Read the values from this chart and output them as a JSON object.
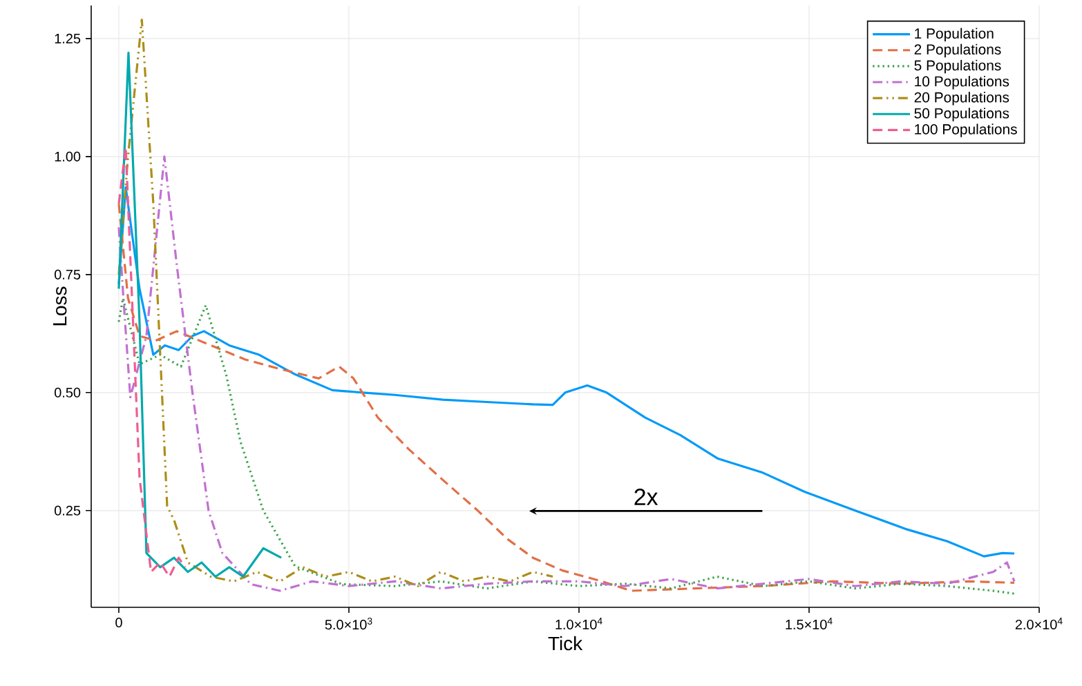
{
  "chart_data": {
    "type": "line",
    "xlabel": "Tick",
    "ylabel": "Loss",
    "xlim": [
      -600,
      20000
    ],
    "ylim": [
      0.045,
      1.32
    ],
    "xticks": [
      0,
      {
        "value": 5000,
        "label": "5.0×10$^{3}$"
      },
      {
        "value": 10000,
        "label": "1.0×10$^{4}$"
      },
      {
        "value": 15000,
        "label": "1.5×10$^{4}$"
      },
      {
        "value": 20000,
        "label": "2.0×10$^{4}$"
      }
    ],
    "yticks": [
      {
        "value": 0.25,
        "label": "0.25"
      },
      {
        "value": 0.5,
        "label": "0.50"
      },
      {
        "value": 0.75,
        "label": "0.75"
      },
      {
        "value": 1.0,
        "label": "1.00"
      },
      {
        "value": 1.25,
        "label": "1.25"
      }
    ],
    "grid": true,
    "legend": "top right",
    "annotations": [
      "2x"
    ],
    "series": [
      {
        "name": "1 Population",
        "color": "#009af9",
        "line_style": "solid",
        "x": [
          0,
          150,
          450,
          750,
          1000,
          1300,
          1600,
          1850,
          2400,
          3050,
          3800,
          4640,
          5300,
          6000,
          7040,
          8000,
          9000,
          9430,
          9700,
          10180,
          10600,
          11440,
          12200,
          13020,
          14000,
          14900,
          16000,
          17130,
          18000,
          18800,
          19200,
          19460
        ],
        "values": [
          0.73,
          0.935,
          0.72,
          0.58,
          0.6,
          0.59,
          0.62,
          0.63,
          0.6,
          0.58,
          0.54,
          0.505,
          0.5,
          0.495,
          0.485,
          0.48,
          0.475,
          0.474,
          0.5,
          0.515,
          0.5,
          0.447,
          0.41,
          0.36,
          0.33,
          0.29,
          0.25,
          0.21,
          0.185,
          0.153,
          0.16,
          0.159
        ]
      },
      {
        "name": "2 Populations",
        "color": "#e26f46",
        "line_style": "dashed",
        "x": [
          0,
          200,
          450,
          800,
          1260,
          2000,
          2750,
          3500,
          4340,
          4790,
          5100,
          5630,
          6300,
          7040,
          7800,
          8440,
          9000,
          9640,
          10500,
          11140,
          12500,
          14000,
          15500,
          17000,
          18500,
          19460
        ],
        "values": [
          0.9,
          0.7,
          0.62,
          0.61,
          0.63,
          0.6,
          0.57,
          0.55,
          0.53,
          0.555,
          0.53,
          0.447,
          0.38,
          0.315,
          0.25,
          0.19,
          0.15,
          0.123,
          0.1,
          0.08,
          0.085,
          0.09,
          0.1,
          0.095,
          0.1,
          0.097
        ]
      },
      {
        "name": "5 Populations",
        "color": "#3ea44e",
        "line_style": "dotted",
        "x": [
          0,
          90,
          450,
          900,
          1350,
          1890,
          2340,
          2640,
          3140,
          3830,
          4850,
          6000,
          7000,
          8000,
          9000,
          10000,
          11000,
          12000,
          13000,
          14000,
          15000,
          16000,
          17000,
          18000,
          19000,
          19460
        ],
        "values": [
          0.65,
          0.7,
          0.56,
          0.58,
          0.555,
          0.685,
          0.535,
          0.397,
          0.25,
          0.132,
          0.094,
          0.09,
          0.1,
          0.085,
          0.1,
          0.09,
          0.095,
          0.085,
          0.11,
          0.09,
          0.1,
          0.085,
          0.095,
          0.09,
          0.08,
          0.074
        ]
      },
      {
        "name": "10 Populations",
        "color": "#c270d2",
        "line_style": "dashdot",
        "x": [
          0,
          100,
          250,
          600,
          990,
          1260,
          1600,
          1950,
          2250,
          2870,
          3500,
          4200,
          5000,
          6000,
          7000,
          8000,
          9000,
          10000,
          11000,
          12000,
          13000,
          14000,
          15000,
          16000,
          17000,
          18000,
          19000,
          19300,
          19460
        ],
        "values": [
          0.85,
          0.7,
          0.49,
          0.62,
          1.0,
          0.77,
          0.5,
          0.25,
          0.16,
          0.094,
          0.08,
          0.1,
          0.09,
          0.1,
          0.085,
          0.095,
          0.1,
          0.1,
          0.09,
          0.105,
          0.085,
          0.095,
          0.105,
          0.09,
          0.1,
          0.095,
          0.12,
          0.14,
          0.1
        ]
      },
      {
        "name": "20 Populations",
        "color": "#ac8e18",
        "line_style": "dashdotdot",
        "x": [
          0,
          200,
          500,
          750,
          1050,
          1200,
          1500,
          2000,
          2500,
          3000,
          3500,
          4000,
          4500,
          5000,
          5500,
          6000,
          6500,
          7000,
          7500,
          8000,
          8500,
          9000,
          9430
        ],
        "values": [
          0.75,
          1.0,
          1.29,
          0.9,
          0.26,
          0.23,
          0.14,
          0.11,
          0.1,
          0.12,
          0.1,
          0.13,
          0.11,
          0.12,
          0.1,
          0.11,
          0.09,
          0.12,
          0.1,
          0.11,
          0.1,
          0.12,
          0.11
        ]
      },
      {
        "name": "50 Populations",
        "color": "#00a9ad",
        "line_style": "solid",
        "x": [
          0,
          210,
          450,
          600,
          900,
          1200,
          1500,
          1800,
          2100,
          2400,
          2700,
          3140,
          3530
        ],
        "values": [
          0.72,
          1.22,
          0.65,
          0.16,
          0.13,
          0.15,
          0.12,
          0.14,
          0.11,
          0.13,
          0.11,
          0.17,
          0.15
        ]
      },
      {
        "name": "100 Populations",
        "color": "#ed5e93",
        "line_style": "dashed",
        "x": [
          0,
          150,
          450,
          700,
          900,
          1100,
          1300,
          1440
        ],
        "values": [
          0.9,
          1.02,
          0.32,
          0.12,
          0.14,
          0.11,
          0.15,
          0.13
        ]
      }
    ]
  }
}
